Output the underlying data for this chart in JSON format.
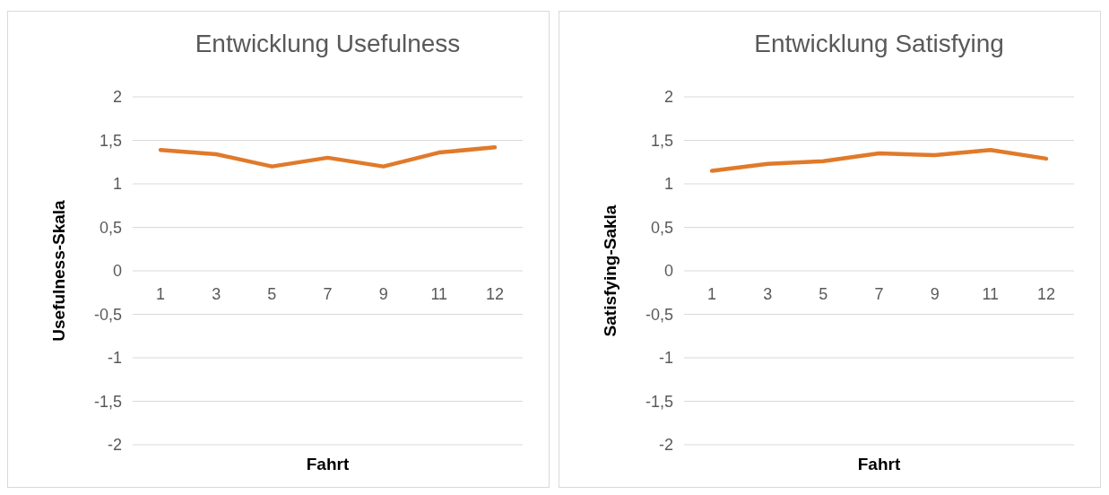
{
  "chart_data": [
    {
      "type": "line",
      "title": "Entwicklung Usefulness",
      "xlabel": "Fahrt",
      "ylabel": "Usefulness-Skala",
      "categories": [
        "1",
        "3",
        "5",
        "7",
        "9",
        "11",
        "12"
      ],
      "series": [
        {
          "color": "#e07a2a",
          "values": [
            1.39,
            1.34,
            1.2,
            1.3,
            1.2,
            1.36,
            1.42
          ]
        }
      ],
      "ylim": [
        -2,
        2
      ],
      "yticks": [
        {
          "value": -2,
          "label": "-2"
        },
        {
          "value": -1.5,
          "label": "-1,5"
        },
        {
          "value": -1,
          "label": "-1"
        },
        {
          "value": -0.5,
          "label": "-0,5"
        },
        {
          "value": 0,
          "label": "0"
        },
        {
          "value": 0.5,
          "label": "0,5"
        },
        {
          "value": 1,
          "label": "1"
        },
        {
          "value": 1.5,
          "label": "1,5"
        },
        {
          "value": 2,
          "label": "2"
        }
      ],
      "grid": "y",
      "marker": "none",
      "line_style": "solid"
    },
    {
      "type": "line",
      "title": "Entwicklung Satisfying",
      "xlabel": "Fahrt",
      "ylabel": "Satisfying-Sakla",
      "categories": [
        "1",
        "3",
        "5",
        "7",
        "9",
        "11",
        "12"
      ],
      "series": [
        {
          "color": "#e07a2a",
          "values": [
            1.15,
            1.23,
            1.26,
            1.35,
            1.33,
            1.39,
            1.29
          ]
        }
      ],
      "ylim": [
        -2,
        2
      ],
      "yticks": [
        {
          "value": -2,
          "label": "-2"
        },
        {
          "value": -1.5,
          "label": "-1,5"
        },
        {
          "value": -1,
          "label": "-1"
        },
        {
          "value": -0.5,
          "label": "-0,5"
        },
        {
          "value": 0,
          "label": "0"
        },
        {
          "value": 0.5,
          "label": "0,5"
        },
        {
          "value": 1,
          "label": "1"
        },
        {
          "value": 1.5,
          "label": "1,5"
        },
        {
          "value": 2,
          "label": "2"
        }
      ],
      "grid": "y",
      "marker": "none",
      "line_style": "solid"
    }
  ]
}
